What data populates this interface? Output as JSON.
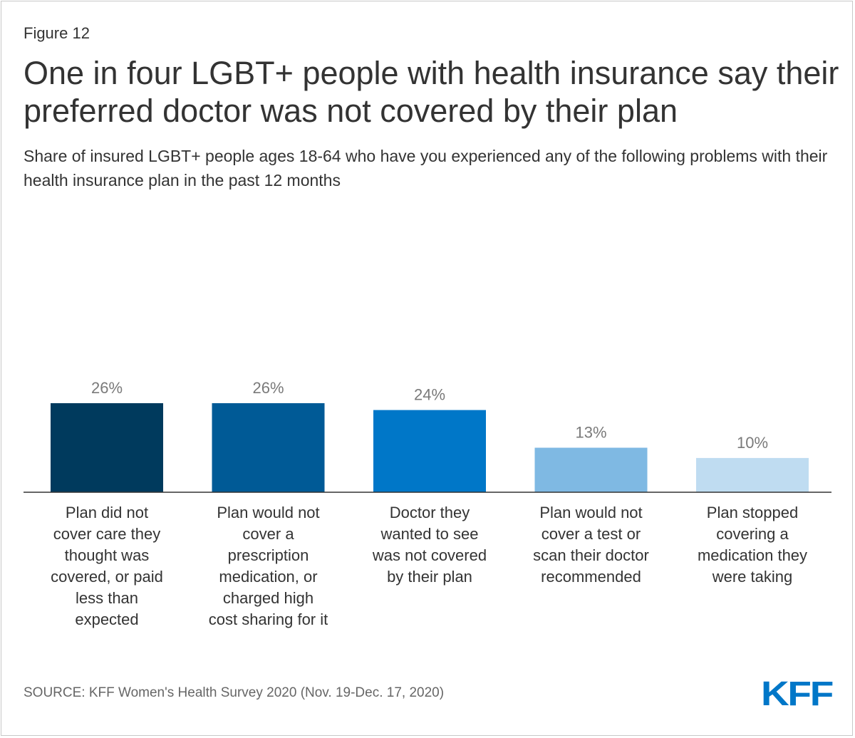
{
  "header": {
    "figure_label": "Figure 12",
    "title": "One in four LGBT+ people with health insurance say their preferred doctor was not covered by their plan",
    "subtitle": "Share of insured LGBT+ people ages 18-64 who have you experienced any of the following problems with their health insurance plan in the past 12 months"
  },
  "chart_data": {
    "type": "bar",
    "title": "One in four LGBT+ people with health insurance say their preferred doctor was not covered by their plan",
    "xlabel": "",
    "ylabel": "",
    "ylim": [
      0,
      30
    ],
    "grid": false,
    "legend": "none",
    "categories": [
      "Plan did not cover care they thought was covered, or paid less than expected",
      "Plan would not cover a prescription medication, or charged high cost sharing for it",
      "Doctor they wanted to see was not covered by their plan",
      "Plan would not cover a test or scan their doctor recommended",
      "Plan stopped covering a medication they were taking"
    ],
    "category_lines": [
      [
        "Plan did not",
        "cover care they",
        "thought was",
        "covered, or paid",
        "less than",
        "expected"
      ],
      [
        "Plan would not",
        "cover a",
        "prescription",
        "medication, or",
        "charged high",
        "cost sharing for it"
      ],
      [
        "Doctor they",
        "wanted to see",
        "was not covered",
        "by their plan"
      ],
      [
        "Plan would not",
        "cover a test or",
        "scan their doctor",
        "recommended"
      ],
      [
        "Plan stopped",
        "covering a",
        "medication they",
        "were taking"
      ]
    ],
    "values": [
      26,
      26,
      24,
      13,
      10
    ],
    "value_labels": [
      "26%",
      "26%",
      "24%",
      "13%",
      "10%"
    ],
    "colors": [
      "#003a5d",
      "#005a96",
      "#0077c8",
      "#7fb9e3",
      "#bfdcf1"
    ]
  },
  "footer": {
    "source": "SOURCE: KFF Women's Health Survey 2020 (Nov. 19-Dec. 17, 2020)",
    "logo_text": "KFF",
    "logo_color": "#0077c8"
  }
}
